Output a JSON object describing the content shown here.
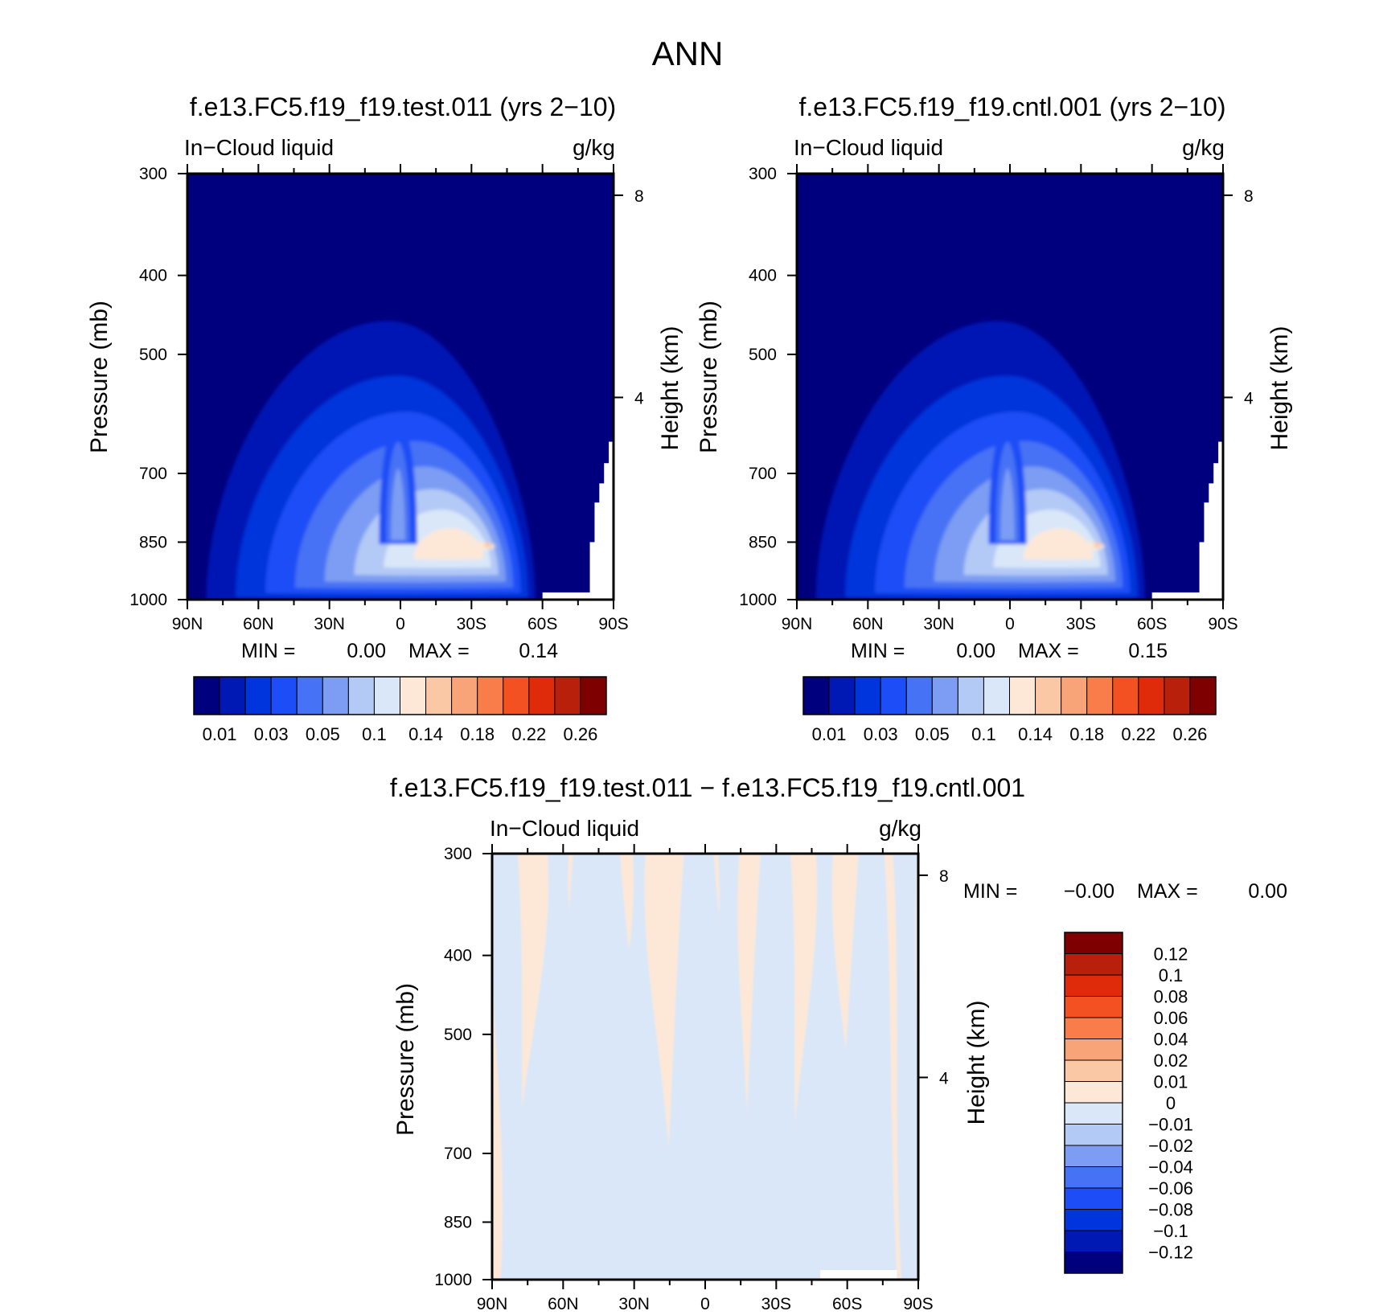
{
  "figure_title": "ANN",
  "colors": {
    "abs_levels": [
      "#00007f",
      "#0019b4",
      "#0034dc",
      "#1d4df6",
      "#4672f5",
      "#7c9df3",
      "#b3c9f6",
      "#d9e7f9",
      "#fde8d8",
      "#fbc8a6",
      "#f9a378",
      "#f87d4b",
      "#f45122",
      "#e02b0a",
      "#b9200c",
      "#7f0000"
    ],
    "diff_levels": [
      "#00007f",
      "#0019b4",
      "#0034dc",
      "#1d4df6",
      "#4672f5",
      "#7c9df3",
      "#b3c9f6",
      "#d9e7f9",
      "#fde8d8",
      "#fbc8a6",
      "#f9a378",
      "#f87d4b",
      "#f45122",
      "#e02b0a",
      "#b9200c",
      "#7f0000"
    ],
    "missing": "#ffffff"
  },
  "chart_data": [
    {
      "type": "heatmap",
      "id": "test",
      "title": "f.e13.FC5.f19_f19.test.011 (yrs 2-10)",
      "title_display": "f.e13.FC5.f19_f19.test.011 (yrs 2−10)",
      "left_label": "In−Cloud liquid",
      "right_label": "g/kg",
      "ylabel": "Pressure (mb)",
      "y2label": "Height (km)",
      "x_ticks": [
        "90N",
        "60N",
        "30N",
        "0",
        "30S",
        "60S",
        "90S"
      ],
      "x_tick_values": [
        90,
        60,
        30,
        0,
        -30,
        -60,
        -90
      ],
      "y_ticks": [
        300,
        400,
        500,
        700,
        850,
        1000
      ],
      "y2_ticks": [
        8,
        4
      ],
      "xlim": [
        90,
        -90
      ],
      "ylim": [
        1000,
        300
      ],
      "y_scale": "log",
      "min_label": "MIN =",
      "min_value": "0.00",
      "max_label": "MAX =",
      "max_value": "0.14",
      "colorbar": {
        "labels": [
          "0.01",
          "0.03",
          "0.05",
          "0.1",
          "0.14",
          "0.18",
          "0.22",
          "0.26"
        ],
        "boundaries": [
          0.01,
          0.02,
          0.03,
          0.04,
          0.05,
          0.07,
          0.1,
          0.12,
          0.14,
          0.16,
          0.18,
          0.2,
          0.22,
          0.24,
          0.26
        ]
      },
      "field": {
        "peak_latitude": -25,
        "peak_pressure": 860,
        "peak_value": 0.14,
        "missing_below_surface_south_of": -60
      }
    },
    {
      "type": "heatmap",
      "id": "cntl",
      "title": "f.e13.FC5.f19_f19.cntl.001 (yrs 2-10)",
      "title_display": "f.e13.FC5.f19_f19.cntl.001 (yrs 2−10)",
      "left_label": "In−Cloud liquid",
      "right_label": "g/kg",
      "ylabel": "Pressure (mb)",
      "y2label": "Height (km)",
      "x_ticks": [
        "90N",
        "60N",
        "30N",
        "0",
        "30S",
        "60S",
        "90S"
      ],
      "x_tick_values": [
        90,
        60,
        30,
        0,
        -30,
        -60,
        -90
      ],
      "y_ticks": [
        300,
        400,
        500,
        700,
        850,
        1000
      ],
      "y2_ticks": [
        8,
        4
      ],
      "xlim": [
        90,
        -90
      ],
      "ylim": [
        1000,
        300
      ],
      "y_scale": "log",
      "min_label": "MIN =",
      "min_value": "0.00",
      "max_label": "MAX =",
      "max_value": "0.15",
      "colorbar": {
        "labels": [
          "0.01",
          "0.03",
          "0.05",
          "0.1",
          "0.14",
          "0.18",
          "0.22",
          "0.26"
        ],
        "boundaries": [
          0.01,
          0.02,
          0.03,
          0.04,
          0.05,
          0.07,
          0.1,
          0.12,
          0.14,
          0.16,
          0.18,
          0.2,
          0.22,
          0.24,
          0.26
        ]
      },
      "field": {
        "peak_latitude": -25,
        "peak_pressure": 860,
        "peak_value": 0.15,
        "missing_below_surface_south_of": -60
      }
    },
    {
      "type": "heatmap",
      "id": "diff",
      "title": "f.e13.FC5.f19_f19.test.011 - f.e13.FC5.f19_f19.cntl.001",
      "title_display": "f.e13.FC5.f19_f19.test.011 − f.e13.FC5.f19_f19.cntl.001",
      "left_label": "In−Cloud liquid",
      "right_label": "g/kg",
      "ylabel": "Pressure (mb)",
      "y2label": "Height (km)",
      "x_ticks": [
        "90N",
        "60N",
        "30N",
        "0",
        "30S",
        "60S",
        "90S"
      ],
      "x_tick_values": [
        90,
        60,
        30,
        0,
        -30,
        -60,
        -90
      ],
      "y_ticks": [
        300,
        400,
        500,
        700,
        850,
        1000
      ],
      "y2_ticks": [
        8,
        4
      ],
      "xlim": [
        90,
        -90
      ],
      "ylim": [
        1000,
        300
      ],
      "y_scale": "log",
      "min_label": "MIN =",
      "min_value": "−0.00",
      "max_label": "MAX =",
      "max_value": "0.00",
      "colorbar": {
        "labels": [
          "0.12",
          "0.1",
          "0.08",
          "0.06",
          "0.04",
          "0.02",
          "0.01",
          "0",
          "−0.01",
          "−0.02",
          "−0.04",
          "−0.06",
          "−0.08",
          "−0.1",
          "−0.12"
        ],
        "boundaries": [
          0.12,
          0.1,
          0.08,
          0.06,
          0.04,
          0.02,
          0.01,
          0,
          -0.01,
          -0.02,
          -0.04,
          -0.06,
          -0.08,
          -0.1,
          -0.12
        ]
      },
      "field": {
        "values_present": [
          -0.01,
          0.01
        ],
        "pattern": "alternating vertical bands of small positive and negative differences"
      }
    }
  ]
}
